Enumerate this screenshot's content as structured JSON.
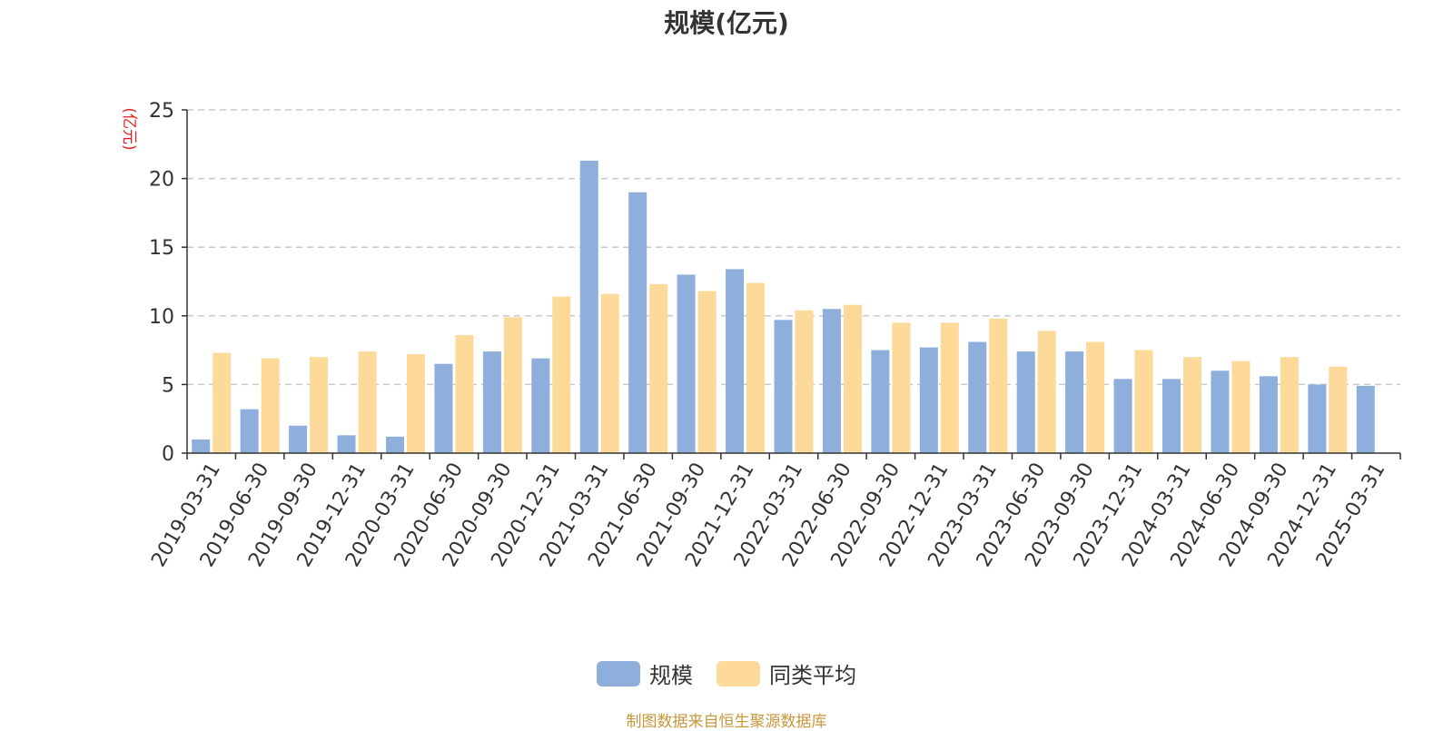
{
  "chart_data": {
    "type": "bar",
    "title": "规模(亿元)",
    "ylabel": "(亿元)",
    "xlabel": "",
    "ylim": [
      0,
      25
    ],
    "yticks": [
      0,
      5,
      10,
      15,
      20,
      25
    ],
    "grid": true,
    "legend_position": "bottom-center",
    "categories": [
      "2019-03-31",
      "2019-06-30",
      "2019-09-30",
      "2019-12-31",
      "2020-03-31",
      "2020-06-30",
      "2020-09-30",
      "2020-12-31",
      "2021-03-31",
      "2021-06-30",
      "2021-09-30",
      "2021-12-31",
      "2022-03-31",
      "2022-06-30",
      "2022-09-30",
      "2022-12-31",
      "2023-03-31",
      "2023-06-30",
      "2023-09-30",
      "2023-12-31",
      "2024-03-31",
      "2024-06-30",
      "2024-09-30",
      "2024-12-31",
      "2025-03-31"
    ],
    "series": [
      {
        "name": "规模",
        "color": "#8eaedb",
        "values": [
          1.0,
          3.2,
          2.0,
          1.3,
          1.2,
          6.5,
          7.4,
          6.9,
          21.3,
          19.0,
          13.0,
          13.4,
          9.7,
          10.5,
          7.5,
          7.7,
          8.1,
          7.4,
          7.4,
          5.4,
          5.4,
          6.0,
          5.6,
          5.0,
          4.9
        ]
      },
      {
        "name": "同类平均",
        "color": "#fdd99a",
        "values": [
          7.3,
          6.9,
          7.0,
          7.4,
          7.2,
          8.6,
          9.9,
          11.4,
          11.6,
          12.3,
          11.8,
          12.4,
          10.4,
          10.8,
          9.5,
          9.5,
          9.8,
          8.9,
          8.1,
          7.5,
          7.0,
          6.7,
          7.0,
          6.3,
          null
        ]
      }
    ]
  },
  "legend": {
    "items": [
      {
        "label": "规模",
        "color": "#8eaedb"
      },
      {
        "label": "同类平均",
        "color": "#fdd99a"
      }
    ]
  },
  "source_note": "制图数据来自恒生聚源数据库"
}
